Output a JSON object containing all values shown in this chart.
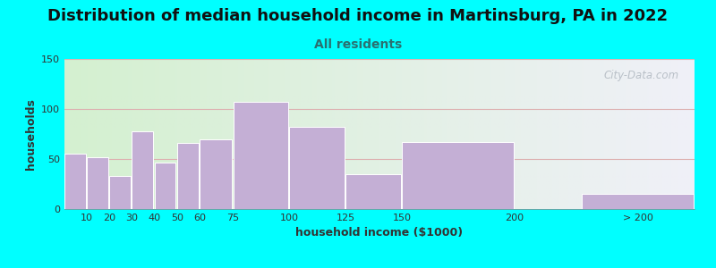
{
  "title": "Distribution of median household income in Martinsburg, PA in 2022",
  "subtitle": "All residents",
  "xlabel": "household income ($1000)",
  "ylabel": "households",
  "bar_values": [
    55,
    52,
    33,
    78,
    46,
    66,
    70,
    107,
    82,
    35,
    67,
    15
  ],
  "bar_lefts": [
    0,
    10,
    20,
    30,
    40,
    50,
    60,
    75,
    100,
    125,
    150,
    230
  ],
  "bar_widths": [
    10,
    10,
    10,
    10,
    10,
    10,
    15,
    25,
    25,
    25,
    50,
    50
  ],
  "bar_color": "#c4afd5",
  "bar_edgecolor": "#ffffff",
  "xlim": [
    0,
    280
  ],
  "ylim": [
    0,
    150
  ],
  "yticks": [
    0,
    50,
    100,
    150
  ],
  "xtick_positions": [
    10,
    20,
    30,
    40,
    50,
    60,
    75,
    100,
    125,
    150,
    200,
    255
  ],
  "xtick_labels": [
    "10",
    "20",
    "30",
    "40",
    "50",
    "60",
    "75",
    "100",
    "125",
    "150",
    "200",
    "> 200"
  ],
  "bg_color": "#00ffff",
  "plot_bg_left_color": "#d4f0d0",
  "plot_bg_right_color": "#f0f0f8",
  "grid_color": "#ddb0b0",
  "title_fontsize": 13,
  "subtitle_fontsize": 10,
  "title_color": "#111111",
  "subtitle_color": "#2a7070",
  "axis_label_fontsize": 9,
  "tick_fontsize": 8,
  "watermark": "City-Data.com"
}
